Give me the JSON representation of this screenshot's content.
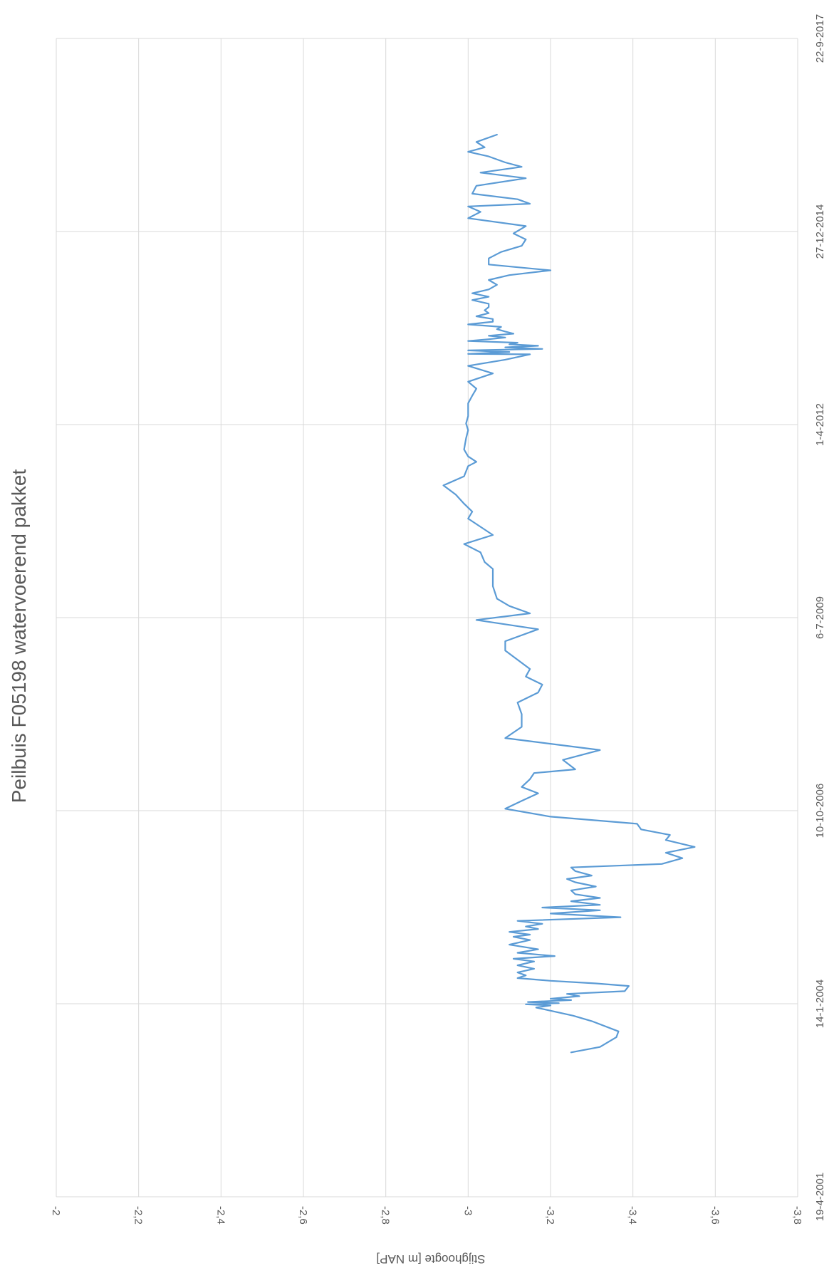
{
  "chart_data": {
    "type": "line",
    "title": "Peilbuis F05198 watervoerend pakket",
    "ylabel": "Stijghoogte [m NAP]",
    "xlabel": "",
    "ylim": [
      -3.8,
      -2
    ],
    "y_ticks": [
      "-2",
      "-2,2",
      "-2,4",
      "-2,6",
      "-2,8",
      "-3",
      "-3,2",
      "-3,4",
      "-3,6",
      "-3,8"
    ],
    "y_tick_values": [
      -2,
      -2.2,
      -2.4,
      -2.6,
      -2.8,
      -3,
      -3.2,
      -3.4,
      -3.6,
      -3.8
    ],
    "x_ticks": [
      "19-4-2001",
      "14-1-2004",
      "10-10-2006",
      "6-7-2009",
      "1-4-2012",
      "27-12-2014",
      "22-9-2017"
    ],
    "x_tick_values": [
      "2001-04-19",
      "2004-01-14",
      "2006-10-10",
      "2009-07-06",
      "2012-04-01",
      "2014-12-27",
      "2017-09-22"
    ],
    "xlim": [
      "2001-04-19",
      "2017-09-22"
    ],
    "grid": true,
    "legend": "none",
    "line_color": "#5b9bd5",
    "series": [
      {
        "x": [
          "2003-05-07",
          "2003-06-04",
          "2003-07-25",
          "2003-08-24",
          "2003-10-16",
          "2003-11-13",
          "2003-12-25",
          "2004-01-05",
          "2004-01-11",
          "2004-01-17",
          "2004-01-23",
          "2004-02-02",
          "2004-02-09",
          "2004-02-22",
          "2004-03-05",
          "2004-03-19",
          "2004-04-15",
          "2004-04-28",
          "2004-05-12",
          "2004-05-26",
          "2004-06-09",
          "2004-06-24",
          "2004-07-13",
          "2004-07-31",
          "2004-08-20",
          "2004-09-03",
          "2004-09-17",
          "2004-10-04",
          "2004-10-22",
          "2004-11-15",
          "2004-12-09",
          "2004-12-26",
          "2005-01-06",
          "2005-01-20",
          "2005-02-04",
          "2005-02-17",
          "2005-03-03",
          "2005-03-18",
          "2005-04-06",
          "2005-04-25",
          "2005-05-12",
          "2005-05-26",
          "2005-06-09",
          "2005-06-28",
          "2005-07-15",
          "2005-08-03",
          "2005-08-23",
          "2005-09-12",
          "2005-10-04",
          "2005-10-21",
          "2005-11-08",
          "2005-12-01",
          "2005-12-20",
          "2006-01-07",
          "2006-02-06",
          "2006-03-06",
          "2006-04-05",
          "2006-05-11",
          "2006-06-06",
          "2006-07-05",
          "2006-08-03",
          "2006-09-09",
          "2006-10-20",
          "2006-11-30",
          "2007-01-08",
          "2007-02-10",
          "2007-03-22",
          "2007-04-23",
          "2007-05-12",
          "2007-06-30",
          "2007-08-20",
          "2007-10-21",
          "2007-12-18",
          "2008-02-22",
          "2008-04-22",
          "2008-06-13",
          "2008-07-24",
          "2008-09-04",
          "2008-10-13",
          "2009-01-16",
          "2009-03-06",
          "2009-05-07",
          "2009-06-24",
          "2009-07-28",
          "2009-09-04",
          "2009-10-12",
          "2009-12-16",
          "2010-03-15",
          "2010-04-20",
          "2010-06-09",
          "2010-07-22",
          "2010-09-07",
          "2010-12-01",
          "2011-01-06",
          "2011-02-16",
          "2011-04-04",
          "2011-05-22",
          "2011-07-08",
          "2011-08-30",
          "2011-09-21",
          "2011-10-19",
          "2011-11-24",
          "2012-01-21",
          "2012-03-03",
          "2012-04-07",
          "2012-05-15",
          "2012-06-18",
          "2012-07-20",
          "2012-08-29",
          "2012-10-04",
          "2012-11-09",
          "2012-12-22",
          "2013-01-30",
          "2013-03-03",
          "2013-03-31",
          "2013-04-02",
          "2013-04-12",
          "2013-04-20",
          "2013-04-28",
          "2013-05-06",
          "2013-05-14",
          "2013-05-22",
          "2013-05-30",
          "2013-06-08",
          "2013-06-17",
          "2013-06-26",
          "2013-07-05",
          "2013-07-16",
          "2013-07-27",
          "2013-08-08",
          "2013-08-20",
          "2013-09-02",
          "2013-09-16",
          "2013-09-30",
          "2013-10-14",
          "2013-10-30",
          "2013-11-14",
          "2013-12-01",
          "2013-12-18",
          "2014-01-06",
          "2014-01-23",
          "2014-02-10",
          "2014-03-02",
          "2014-03-26",
          "2014-04-20",
          "2014-05-15",
          "2014-06-09",
          "2014-07-09",
          "2014-08-10",
          "2014-09-12",
          "2014-10-14",
          "2014-11-16",
          "2014-12-17",
          "2015-01-24",
          "2015-03-06",
          "2015-04-08",
          "2015-05-06",
          "2015-05-20",
          "2015-06-12",
          "2015-07-11",
          "2015-08-21",
          "2015-09-29",
          "2015-10-28",
          "2015-11-27",
          "2015-12-20",
          "2016-01-20",
          "2016-02-13",
          "2016-03-07",
          "2016-04-04",
          "2016-05-12"
        ],
        "y": [
          -3.25,
          -3.32,
          -3.36,
          -3.365,
          -3.3,
          -3.255,
          -3.165,
          -3.2,
          -3.14,
          -3.22,
          -3.145,
          -3.25,
          -3.2,
          -3.27,
          -3.24,
          -3.38,
          -3.39,
          -3.31,
          -3.2,
          -3.12,
          -3.14,
          -3.12,
          -3.16,
          -3.12,
          -3.16,
          -3.11,
          -3.21,
          -3.12,
          -3.17,
          -3.1,
          -3.15,
          -3.11,
          -3.15,
          -3.1,
          -3.17,
          -3.14,
          -3.18,
          -3.12,
          -3.37,
          -3.2,
          -3.32,
          -3.18,
          -3.32,
          -3.25,
          -3.32,
          -3.26,
          -3.25,
          -3.31,
          -3.26,
          -3.24,
          -3.3,
          -3.26,
          -3.25,
          -3.47,
          -3.52,
          -3.48,
          -3.55,
          -3.48,
          -3.49,
          -3.42,
          -3.41,
          -3.2,
          -3.09,
          -3.13,
          -3.17,
          -3.13,
          -3.15,
          -3.16,
          -3.26,
          -3.23,
          -3.32,
          -3.09,
          -3.13,
          -3.13,
          -3.12,
          -3.17,
          -3.18,
          -3.14,
          -3.15,
          -3.09,
          -3.09,
          -3.17,
          -3.02,
          -3.15,
          -3.1,
          -3.07,
          -3.06,
          -3.06,
          -3.04,
          -3.03,
          -2.99,
          -3.06,
          -3.0,
          -3.01,
          -2.99,
          -2.97,
          -2.94,
          -2.99,
          -3.0,
          -3.02,
          -3.0,
          -2.99,
          -2.995,
          -3.0,
          -2.995,
          -3.0,
          -3.0,
          -3.0,
          -3.01,
          -3.02,
          -3.0,
          -3.06,
          -3.0,
          -3.09,
          -3.15,
          -3.0,
          -3.1,
          -3.0,
          -3.18,
          -3.09,
          -3.17,
          -3.1,
          -3.12,
          -3.0,
          -3.05,
          -3.09,
          -3.05,
          -3.11,
          -3.09,
          -3.07,
          -3.08,
          -3.0,
          -3.06,
          -3.06,
          -3.02,
          -3.05,
          -3.04,
          -3.05,
          -3.05,
          -3.01,
          -3.05,
          -3.01,
          -3.05,
          -3.07,
          -3.05,
          -3.1,
          -3.2,
          -3.05,
          -3.05,
          -3.08,
          -3.13,
          -3.14,
          -3.11,
          -3.14,
          -3.0,
          -3.03,
          -3.0,
          -3.15,
          -3.12,
          -3.01,
          -3.02,
          -3.14,
          -3.03,
          -3.13,
          -3.09,
          -3.05,
          -3.0,
          -3.04,
          -3.02,
          -3.07
        ]
      }
    ]
  }
}
